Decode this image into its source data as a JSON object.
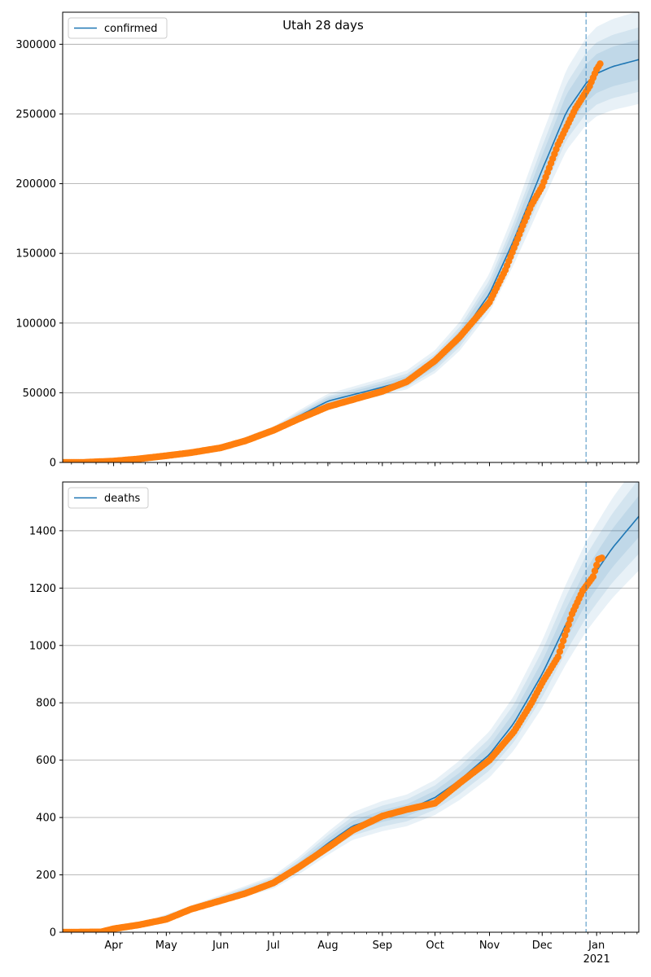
{
  "figure": {
    "title": "Utah 28 days"
  },
  "chart_data": [
    {
      "type": "line",
      "title": "Utah 28 days",
      "legend": {
        "placement": "top-left",
        "entries": [
          "confirmed"
        ]
      },
      "series_name": "confirmed",
      "grid": "y",
      "ylim": [
        0,
        323000
      ],
      "yticks": [
        0,
        50000,
        100000,
        150000,
        200000,
        250000,
        300000
      ],
      "ytick_labels": [
        "0",
        "50000",
        "100000",
        "150000",
        "200000",
        "250000",
        "300000"
      ],
      "xlim": [
        "2020-03-03",
        "2021-01-25"
      ],
      "forecast_start": "2020-12-26",
      "fit_curve": [
        [
          "2020-03-03",
          0
        ],
        [
          "2020-04-01",
          1500
        ],
        [
          "2020-05-01",
          5000
        ],
        [
          "2020-06-01",
          10500
        ],
        [
          "2020-07-01",
          23000
        ],
        [
          "2020-07-15",
          33000
        ],
        [
          "2020-08-01",
          44000
        ],
        [
          "2020-09-01",
          54000
        ],
        [
          "2020-09-15",
          59000
        ],
        [
          "2020-10-01",
          72000
        ],
        [
          "2020-10-15",
          90000
        ],
        [
          "2020-11-01",
          121000
        ],
        [
          "2020-11-15",
          160000
        ],
        [
          "2020-12-01",
          210000
        ],
        [
          "2020-12-15",
          252000
        ],
        [
          "2020-12-26",
          272000
        ],
        [
          "2021-01-01",
          279000
        ],
        [
          "2021-01-10",
          284000
        ],
        [
          "2021-01-25",
          289000
        ]
      ],
      "observed": [
        [
          "2020-03-03",
          0
        ],
        [
          "2020-03-15",
          60
        ],
        [
          "2020-04-01",
          1000
        ],
        [
          "2020-04-15",
          2500
        ],
        [
          "2020-05-01",
          4800
        ],
        [
          "2020-05-15",
          7000
        ],
        [
          "2020-06-01",
          10500
        ],
        [
          "2020-06-15",
          15500
        ],
        [
          "2020-07-01",
          23000
        ],
        [
          "2020-07-15",
          31000
        ],
        [
          "2020-08-01",
          40000
        ],
        [
          "2020-08-15",
          45000
        ],
        [
          "2020-09-01",
          51000
        ],
        [
          "2020-09-15",
          58000
        ],
        [
          "2020-10-01",
          73000
        ],
        [
          "2020-10-15",
          90000
        ],
        [
          "2020-11-01",
          115000
        ],
        [
          "2020-11-10",
          138000
        ],
        [
          "2020-11-20",
          170000
        ],
        [
          "2020-11-25",
          185000
        ],
        [
          "2020-12-01",
          198000
        ],
        [
          "2020-12-10",
          228000
        ],
        [
          "2020-12-20",
          254000
        ],
        [
          "2020-12-28",
          270000
        ],
        [
          "2021-01-01",
          282000
        ],
        [
          "2021-01-03",
          286000
        ]
      ],
      "bands": [
        {
          "lower": 0.95,
          "upper": 1.05
        },
        {
          "lower": 0.92,
          "upper": 1.08
        },
        {
          "lower": 0.89,
          "upper": 1.12
        }
      ]
    },
    {
      "type": "line",
      "legend": {
        "placement": "top-left",
        "entries": [
          "deaths"
        ]
      },
      "series_name": "deaths",
      "grid": "y",
      "ylim": [
        0,
        1570
      ],
      "yticks": [
        0,
        200,
        400,
        600,
        800,
        1000,
        1200,
        1400
      ],
      "ytick_labels": [
        "0",
        "200",
        "400",
        "600",
        "800",
        "1000",
        "1200",
        "1400"
      ],
      "xlim": [
        "2020-03-03",
        "2021-01-25"
      ],
      "forecast_start": "2020-12-26",
      "xticks": [
        "2020-04-01",
        "2020-05-01",
        "2020-06-01",
        "2020-07-01",
        "2020-08-01",
        "2020-09-01",
        "2020-10-01",
        "2020-11-01",
        "2020-12-01",
        "2021-01-01"
      ],
      "xtick_labels": [
        "Apr",
        "May",
        "Jun",
        "Jul",
        "Aug",
        "Sep",
        "Oct",
        "Nov",
        "Dec",
        "Jan"
      ],
      "xtick_year_label": "2021",
      "fit_curve": [
        [
          "2020-03-03",
          0
        ],
        [
          "2020-03-25",
          3
        ],
        [
          "2020-04-15",
          25
        ],
        [
          "2020-05-01",
          55
        ],
        [
          "2020-06-01",
          115
        ],
        [
          "2020-07-01",
          175
        ],
        [
          "2020-07-15",
          230
        ],
        [
          "2020-08-01",
          310
        ],
        [
          "2020-08-15",
          370
        ],
        [
          "2020-09-01",
          405
        ],
        [
          "2020-09-15",
          425
        ],
        [
          "2020-10-01",
          470
        ],
        [
          "2020-10-15",
          530
        ],
        [
          "2020-11-01",
          620
        ],
        [
          "2020-11-15",
          730
        ],
        [
          "2020-12-01",
          900
        ],
        [
          "2020-12-15",
          1080
        ],
        [
          "2020-12-26",
          1205
        ],
        [
          "2021-01-01",
          1260
        ],
        [
          "2021-01-10",
          1340
        ],
        [
          "2021-01-25",
          1450
        ]
      ],
      "observed": [
        [
          "2020-03-03",
          0
        ],
        [
          "2020-03-25",
          1
        ],
        [
          "2020-04-01",
          12
        ],
        [
          "2020-04-15",
          25
        ],
        [
          "2020-05-01",
          45
        ],
        [
          "2020-05-15",
          80
        ],
        [
          "2020-06-01",
          110
        ],
        [
          "2020-06-15",
          135
        ],
        [
          "2020-07-01",
          172
        ],
        [
          "2020-07-15",
          225
        ],
        [
          "2020-08-01",
          295
        ],
        [
          "2020-08-15",
          355
        ],
        [
          "2020-09-01",
          405
        ],
        [
          "2020-09-15",
          428
        ],
        [
          "2020-10-01",
          450
        ],
        [
          "2020-10-15",
          520
        ],
        [
          "2020-11-01",
          600
        ],
        [
          "2020-11-15",
          700
        ],
        [
          "2020-11-25",
          800
        ],
        [
          "2020-12-01",
          870
        ],
        [
          "2020-12-10",
          960
        ],
        [
          "2020-12-18",
          1110
        ],
        [
          "2020-12-24",
          1190
        ],
        [
          "2020-12-30",
          1240
        ],
        [
          "2021-01-02",
          1300
        ],
        [
          "2021-01-04",
          1305
        ]
      ],
      "bands": [
        {
          "lower": 0.95,
          "upper": 1.05
        },
        {
          "lower": 0.91,
          "upper": 1.09
        },
        {
          "lower": 0.87,
          "upper": 1.13
        }
      ]
    }
  ],
  "colors": {
    "fit_line": "#1f77b4",
    "observed": "#ff7f0e",
    "band": "#1f77b4",
    "grid": "#b0b0b0",
    "forecast_line": "#1f77b4"
  }
}
